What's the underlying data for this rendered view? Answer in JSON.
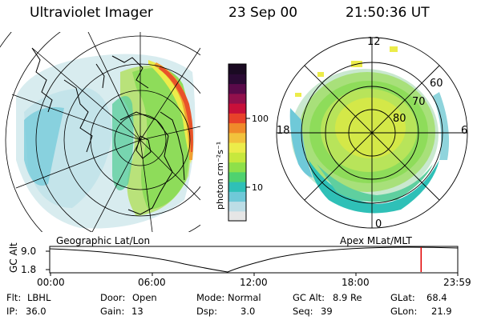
{
  "header": {
    "instrument": "Ultraviolet Imager",
    "date": "23 Sep 00",
    "time": "21:50:36 UT"
  },
  "left_panel": {
    "caption": "Geographic Lat/Lon"
  },
  "right_panel": {
    "caption": "Apex MLat/MLT",
    "mlt_labels": {
      "top": "12",
      "left": "18",
      "right": "6",
      "bottom": "0"
    },
    "lat_labels": [
      "60",
      "70",
      "80"
    ]
  },
  "colorbar": {
    "unit_label": "photon cm⁻²s⁻¹",
    "ticks": [
      "100",
      "10"
    ],
    "colors": [
      "#e6e6e6",
      "#bcdde6",
      "#6fc9d8",
      "#2fc0b7",
      "#4fd26f",
      "#8ee04a",
      "#c7e83d",
      "#ecec4a",
      "#f2c23c",
      "#f08a2a",
      "#e8422a",
      "#c8103a",
      "#92104c",
      "#5a0a4a",
      "#2a0a34",
      "#1a0a22"
    ]
  },
  "altitude_plot": {
    "y_label": "GC Alt",
    "y_ticks": [
      "9.0",
      "1.8"
    ],
    "x_ticks": [
      "00:00",
      "06:00",
      "12:00",
      "18:00",
      "23:59"
    ],
    "current_time_hours": 21.84
  },
  "info": {
    "rows": [
      [
        {
          "key": "Flt:",
          "value": "LBHL"
        },
        {
          "key": "Door:",
          "value": "Open"
        },
        {
          "key": "Mode:",
          "value": "Normal"
        },
        {
          "key": "GC Alt:",
          "value": "8.9 Re"
        },
        {
          "key": "GLat:",
          "value": "68.4"
        }
      ],
      [
        {
          "key": "IP:",
          "value": "36.0"
        },
        {
          "key": "Gain:",
          "value": "13"
        },
        {
          "key": "Dsp:",
          "value": "3.0"
        },
        {
          "key": "Seq:",
          "value": "39"
        },
        {
          "key": "GLon:",
          "value": "21.9"
        }
      ]
    ]
  },
  "colors": {
    "marker_red": "#e00000",
    "grid": "#000000"
  }
}
